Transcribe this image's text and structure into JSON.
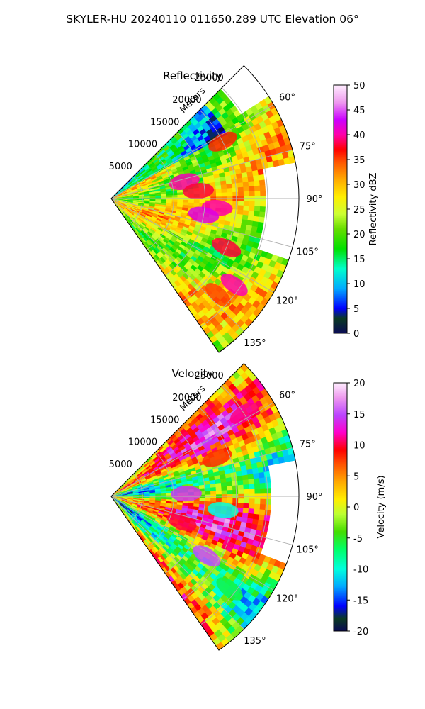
{
  "figure": {
    "suptitle": "SKYLER-HU  20240110  011650.289 UTC Elevation 06°"
  },
  "chart_data": [
    {
      "type": "heatmap",
      "subtype": "polar-sector (radar PPI)",
      "title": "Reflectivity",
      "range_label": "Meters",
      "range_ticks": [
        "5000",
        "10000",
        "15000",
        "20000",
        "25000"
      ],
      "range_values": [
        5000,
        10000,
        15000,
        20000,
        25000
      ],
      "range_max": 30000,
      "azimuth_range_deg": [
        45,
        145
      ],
      "azimuth_ticks": [
        "60°",
        "75°",
        "90°",
        "105°",
        "120°",
        "135°"
      ],
      "azimuth_values": [
        60,
        75,
        90,
        105,
        120,
        135
      ],
      "grid": true,
      "colorbar": {
        "label": "Reflectivity dBZ",
        "min": 0,
        "max": 50,
        "ticks": [
          "0",
          "5",
          "10",
          "15",
          "20",
          "25",
          "30",
          "35",
          "40",
          "45",
          "50"
        ],
        "tick_values": [
          0,
          5,
          10,
          15,
          20,
          25,
          30,
          35,
          40,
          45,
          50
        ]
      },
      "features": [
        {
          "az_deg": 63,
          "range_m": 20000,
          "value": 36
        },
        {
          "az_deg": 77,
          "range_m": 12000,
          "value": 40
        },
        {
          "az_deg": 85,
          "range_m": 14000,
          "value": 38
        },
        {
          "az_deg": 95,
          "range_m": 17000,
          "value": 40
        },
        {
          "az_deg": 100,
          "range_m": 15000,
          "value": 42
        },
        {
          "az_deg": 113,
          "range_m": 20000,
          "value": 38
        },
        {
          "az_deg": 125,
          "range_m": 24000,
          "value": 40
        },
        {
          "az_deg": 132,
          "range_m": 23000,
          "value": 35
        }
      ]
    },
    {
      "type": "heatmap",
      "subtype": "polar-sector (radar PPI)",
      "title": "Velocity",
      "range_label": "Meters",
      "range_ticks": [
        "5000",
        "10000",
        "15000",
        "20000",
        "25000"
      ],
      "range_values": [
        5000,
        10000,
        15000,
        20000,
        25000
      ],
      "range_max": 30000,
      "azimuth_range_deg": [
        45,
        145
      ],
      "azimuth_ticks": [
        "60°",
        "75°",
        "90°",
        "105°",
        "120°",
        "135°"
      ],
      "azimuth_values": [
        60,
        75,
        90,
        105,
        120,
        135
      ],
      "grid": true,
      "colorbar": {
        "label": "Velocity (m/s)",
        "min": -20,
        "max": 20,
        "ticks": [
          "-20",
          "-15",
          "-10",
          "-5",
          "0",
          "5",
          "10",
          "15",
          "20"
        ],
        "tick_values": [
          -20,
          -15,
          -10,
          -5,
          0,
          5,
          10,
          15,
          20
        ]
      },
      "features": [
        {
          "az_deg": 58,
          "range_m": 25000,
          "value": 11
        },
        {
          "az_deg": 70,
          "range_m": 18000,
          "value": 8
        },
        {
          "az_deg": 88,
          "range_m": 12000,
          "value": 14
        },
        {
          "az_deg": 97,
          "range_m": 18000,
          "value": -10
        },
        {
          "az_deg": 110,
          "range_m": 12000,
          "value": 10
        },
        {
          "az_deg": 122,
          "range_m": 18000,
          "value": 15
        },
        {
          "az_deg": 128,
          "range_m": 24000,
          "value": -6
        }
      ]
    }
  ]
}
